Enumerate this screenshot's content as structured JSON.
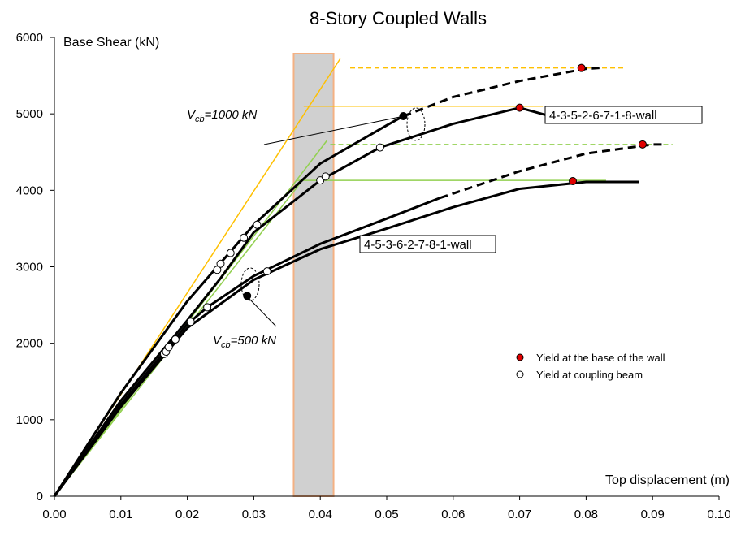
{
  "chart_data": {
    "type": "line",
    "title": "8-Story Coupled Walls",
    "y_label": "Base Shear (kN)",
    "x_label": "Top displacement (m)",
    "xlim": [
      0,
      0.1
    ],
    "ylim": [
      0,
      6000
    ],
    "xticks": [
      {
        "value": 0,
        "label": "0.00"
      },
      {
        "value": 0.01,
        "label": "0.01"
      },
      {
        "value": 0.02,
        "label": "0.02"
      },
      {
        "value": 0.03,
        "label": "0.03"
      },
      {
        "value": 0.04,
        "label": "0.04"
      },
      {
        "value": 0.05,
        "label": "0.05"
      },
      {
        "value": 0.06,
        "label": "0.06"
      },
      {
        "value": 0.07,
        "label": "0.07"
      },
      {
        "value": 0.08,
        "label": "0.08"
      },
      {
        "value": 0.09,
        "label": "0.09"
      },
      {
        "value": 0.1,
        "label": "0.10"
      }
    ],
    "yticks": [
      0,
      1000,
      2000,
      3000,
      4000,
      5000,
      6000
    ],
    "band": {
      "xlim": [
        0.036,
        0.042
      ],
      "color": "#d0d0d0",
      "edge": "#f4b183"
    },
    "reference_lines": [
      {
        "color": "#ffc000",
        "dash": false,
        "x": [
          0,
          0.043
        ],
        "values": [
          0,
          5720
        ]
      },
      {
        "color": "#92d050",
        "dash": false,
        "x": [
          0,
          0.041
        ],
        "values": [
          0,
          4650
        ]
      },
      {
        "color": "#92d050",
        "dash": false,
        "x": [
          0,
          0.0375
        ],
        "values": [
          0,
          4150
        ]
      },
      {
        "color": "#ffc000",
        "dash": true,
        "x": [
          0.0445,
          0.086
        ],
        "values": [
          5600,
          5600
        ]
      },
      {
        "color": "#ffc000",
        "dash": false,
        "x": [
          0.0375,
          0.0735
        ],
        "values": [
          5100,
          5100
        ]
      },
      {
        "color": "#92d050",
        "dash": true,
        "x": [
          0.0415,
          0.093
        ],
        "values": [
          4600,
          4600
        ]
      },
      {
        "color": "#92d050",
        "dash": false,
        "x": [
          0.0365,
          0.083
        ],
        "values": [
          4130,
          4130
        ]
      }
    ],
    "series": [
      {
        "color": "#000000",
        "dash": false,
        "x": [
          0,
          0.01,
          0.02,
          0.03,
          0.04,
          0.05,
          0.0525
        ],
        "values": [
          0,
          1350,
          2550,
          3550,
          4350,
          4850,
          4970
        ]
      },
      {
        "color": "#000000",
        "dash": true,
        "x": [
          0.0525,
          0.06,
          0.07,
          0.08,
          0.082
        ],
        "values": [
          4970,
          5220,
          5430,
          5590,
          5600
        ]
      },
      {
        "color": "#000000",
        "dash": false,
        "x": [
          0,
          0.01,
          0.02,
          0.025,
          0.03,
          0.04,
          0.049,
          0.06,
          0.07,
          0.075
        ],
        "values": [
          0,
          1250,
          2300,
          2850,
          3450,
          4130,
          4560,
          4870,
          5080,
          4960
        ]
      },
      {
        "color": "#000000",
        "dash": false,
        "x": [
          0,
          0.01,
          0.02,
          0.023,
          0.03,
          0.04,
          0.05,
          0.058
        ],
        "values": [
          0,
          1200,
          2250,
          2470,
          2880,
          3300,
          3630,
          3900
        ]
      },
      {
        "color": "#000000",
        "dash": true,
        "x": [
          0.058,
          0.07,
          0.08,
          0.09,
          0.092
        ],
        "values": [
          3900,
          4250,
          4480,
          4600,
          4600
        ]
      },
      {
        "color": "#000000",
        "dash": false,
        "x": [
          0,
          0.01,
          0.02,
          0.03,
          0.04,
          0.05,
          0.06,
          0.07,
          0.08,
          0.088
        ],
        "values": [
          0,
          1170,
          2200,
          2830,
          3230,
          3500,
          3780,
          4020,
          4110,
          4110
        ]
      }
    ],
    "markers": [
      {
        "name": "Yield at the base of the wall",
        "color": "#e00000",
        "x": [
          0.0793,
          0.07,
          0.0885,
          0.078
        ],
        "values": [
          5600,
          5080,
          4600,
          4120
        ]
      },
      {
        "name": "Yield at coupling beam",
        "color": "#ffffff",
        "x": [
          0.0165,
          0.0168,
          0.0172,
          0.0182,
          0.0205,
          0.023,
          0.0245,
          0.025,
          0.0265,
          0.0285,
          0.0305,
          0.032,
          0.04,
          0.0408,
          0.049
        ],
        "values": [
          1860,
          1890,
          1950,
          2050,
          2280,
          2470,
          2960,
          3040,
          3180,
          3380,
          3550,
          2940,
          4130,
          4180,
          4560
        ]
      },
      {
        "color": "#000000",
        "x": [
          0.0525,
          0.029
        ],
        "values": [
          4970,
          2620
        ]
      }
    ],
    "legend": "lower-right",
    "annotations": [
      {
        "text": "V",
        "sub": "cb",
        "rest": "=1000 kN"
      },
      {
        "text": "V",
        "sub": "cb",
        "rest": "=500 kN"
      },
      {
        "text": "4-3-5-2-6-7-1-8-wall"
      },
      {
        "text": "4-5-3-6-2-7-8-1-wall"
      }
    ]
  }
}
